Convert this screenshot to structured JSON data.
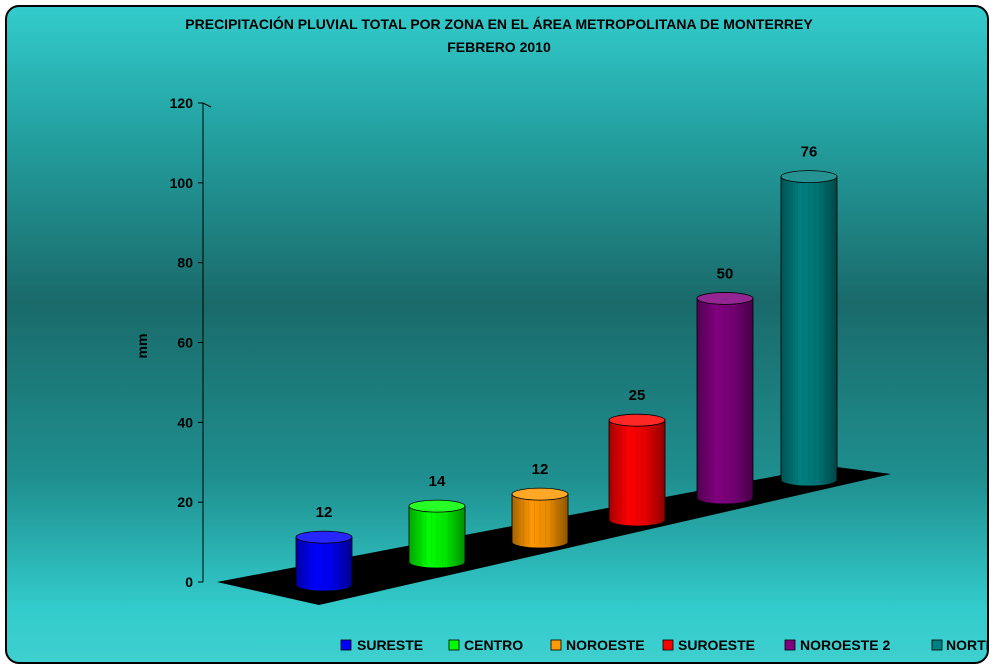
{
  "chart_data": {
    "type": "bar",
    "title": "PRECIPITACIÓN PLUVIAL TOTAL POR ZONA  EN EL ÁREA METROPOLITANA DE MONTERREY",
    "subtitle": "FEBRERO 2010",
    "xlabel": "",
    "ylabel": "mm",
    "ylim": [
      0,
      120
    ],
    "yticks": [
      0,
      20,
      40,
      60,
      80,
      100,
      120
    ],
    "grid": false,
    "legend_position": "bottom",
    "categories": [
      "SURESTE",
      "CENTRO",
      "NOROESTE",
      "SUROESTE",
      "NOROESTE 2",
      "NORTE"
    ],
    "values": [
      12,
      14,
      12,
      25,
      50,
      76
    ],
    "data_labels": [
      "12",
      "14",
      "12",
      "25",
      "50",
      "76"
    ],
    "colors": [
      "#0000ff",
      "#00ff00",
      "#ff9900",
      "#ff0000",
      "#800080",
      "#008080"
    ]
  }
}
